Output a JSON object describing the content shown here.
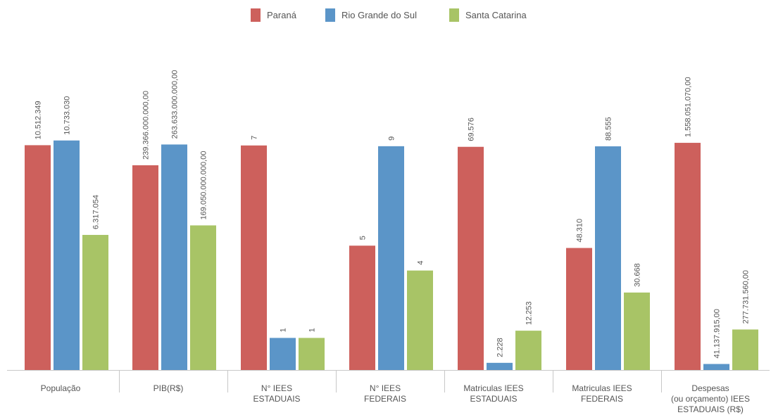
{
  "chart_data": {
    "type": "bar",
    "title": "",
    "xlabel": "",
    "ylabel": "",
    "grid": false,
    "legend_position": "top-center",
    "categories": [
      [
        "População"
      ],
      [
        "PIB(R$)"
      ],
      [
        "N° IEES",
        "ESTADUAIS"
      ],
      [
        "N° IEES",
        "FEDERAIS"
      ],
      [
        "Matriculas IEES",
        "ESTADUAIS"
      ],
      [
        "Matriculas IEES",
        "FEDERAIS"
      ],
      [
        "Despesas",
        "(ou orçamento) IEES",
        "ESTADUAIS (R$)"
      ]
    ],
    "series": [
      {
        "name": "Paraná",
        "color": "#cd605c",
        "values": [
          10512349,
          239366000000,
          7,
          5,
          69576,
          48310,
          1558051070
        ],
        "labels": [
          "10.512.349",
          "239.366.000.000,00",
          "7",
          "5",
          "69.576",
          "48.310",
          "1.558.051.070,00"
        ]
      },
      {
        "name": "Rio Grande do Sul",
        "color": "#5b95c8",
        "values": [
          10733030,
          263633000000,
          1,
          9,
          2228,
          88555,
          41137915
        ],
        "labels": [
          "10.733.030",
          "263.633.000.000,00",
          "1",
          "9",
          "2.228",
          "88.555",
          "41.137.915,00"
        ]
      },
      {
        "name": "Santa Catarina",
        "color": "#a8c466",
        "values": [
          6317054,
          169050000000,
          1,
          4,
          12253,
          30668,
          277731560
        ],
        "labels": [
          "6.317.054",
          "169.050.000.000,00",
          "1",
          "4",
          "12.253",
          "30.668",
          "277.731.560,00"
        ]
      }
    ],
    "ylim_per_group": [
      [
        0,
        15000000
      ],
      [
        0,
        375000000000
      ],
      [
        0,
        10
      ],
      [
        0,
        12.9
      ],
      [
        0,
        100000
      ],
      [
        0,
        127000
      ],
      [
        0,
        2200000000
      ]
    ]
  }
}
